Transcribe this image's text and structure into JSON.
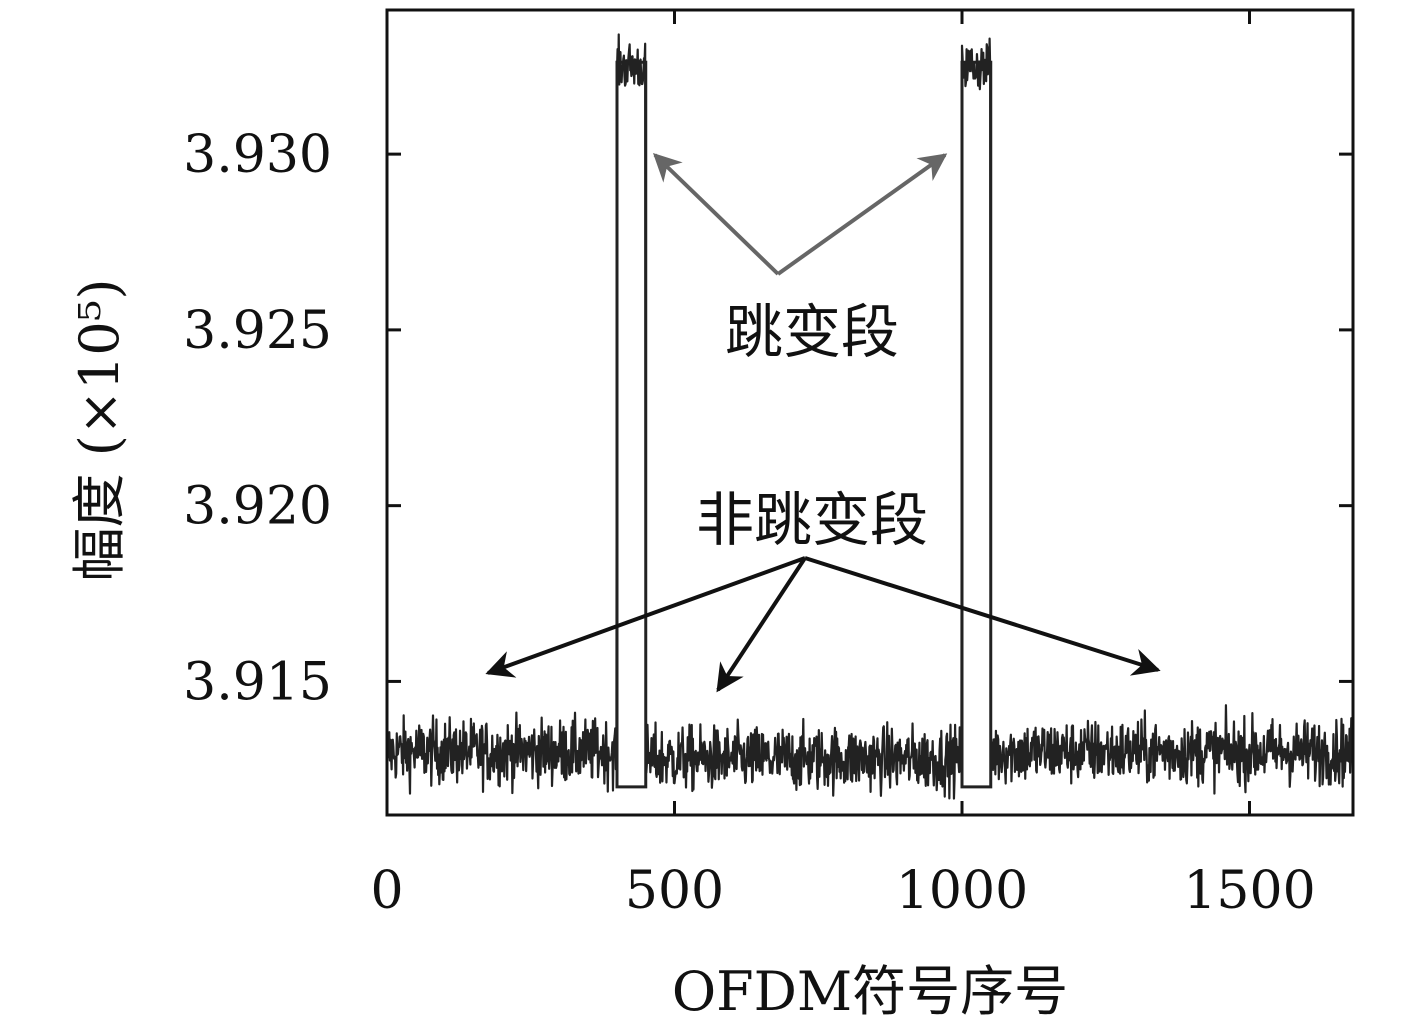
{
  "chart_data": {
    "type": "line",
    "title": "",
    "xlabel": "OFDM符号序号",
    "ylabel": "幅度 (×10⁵)",
    "xlim": [
      0,
      1680
    ],
    "ylim": [
      3.9112,
      3.9341
    ],
    "x_ticks": [
      0,
      500,
      1000,
      1500
    ],
    "x_tick_labels": [
      "0",
      "500",
      "1000",
      "1500"
    ],
    "y_ticks": [
      3.915,
      3.92,
      3.925,
      3.93
    ],
    "y_tick_labels": [
      "3.915",
      "3.920",
      "3.925",
      "3.930"
    ],
    "grid": false,
    "legend": "none",
    "series": [
      {
        "segments": [
          {
            "x_start": 0,
            "x_end": 400,
            "mean": 3.913,
            "state": "non-hopping"
          },
          {
            "x_start": 400,
            "x_end": 450,
            "mean": 3.9325,
            "state": "hopping"
          },
          {
            "x_start": 450,
            "x_end": 1000,
            "mean": 3.9128,
            "state": "non-hopping"
          },
          {
            "x_start": 1000,
            "x_end": 1050,
            "mean": 3.9325,
            "state": "hopping"
          },
          {
            "x_start": 1050,
            "x_end": 1680,
            "mean": 3.913,
            "state": "non-hopping"
          }
        ],
        "color": "#222222"
      }
    ],
    "annotations": [
      {
        "text": "跳变段",
        "color": "#555555"
      },
      {
        "text": "非跳变段",
        "color": "#111111"
      }
    ]
  }
}
